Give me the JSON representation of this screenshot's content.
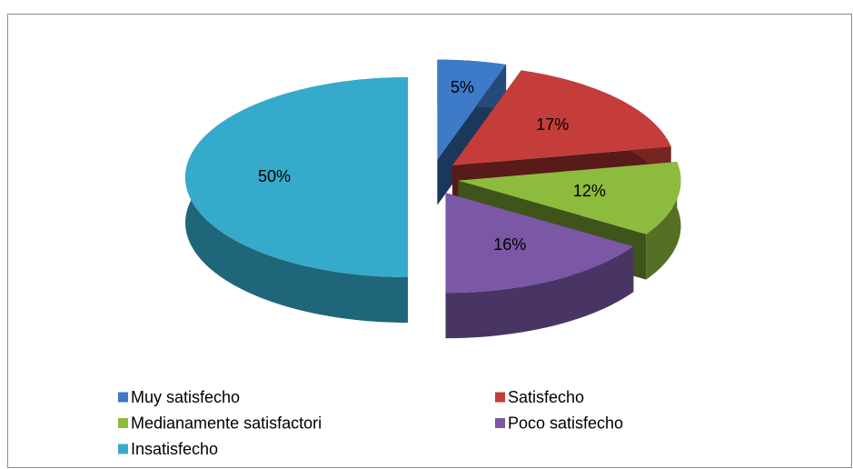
{
  "chart_data": {
    "type": "pie3d",
    "categories": [
      "Muy satisfecho",
      "Satisfecho",
      "Medianamente satisfactori",
      "Poco satisfecho",
      "Insatisfecho"
    ],
    "values": [
      5,
      17,
      12,
      16,
      50
    ],
    "value_labels": [
      "5%",
      "17%",
      "12%",
      "16%",
      "50%"
    ],
    "colors": [
      "#3d7ac8",
      "#c43d3a",
      "#8dbb3d",
      "#7a58a5",
      "#36aacb"
    ],
    "legend": "bottom"
  }
}
